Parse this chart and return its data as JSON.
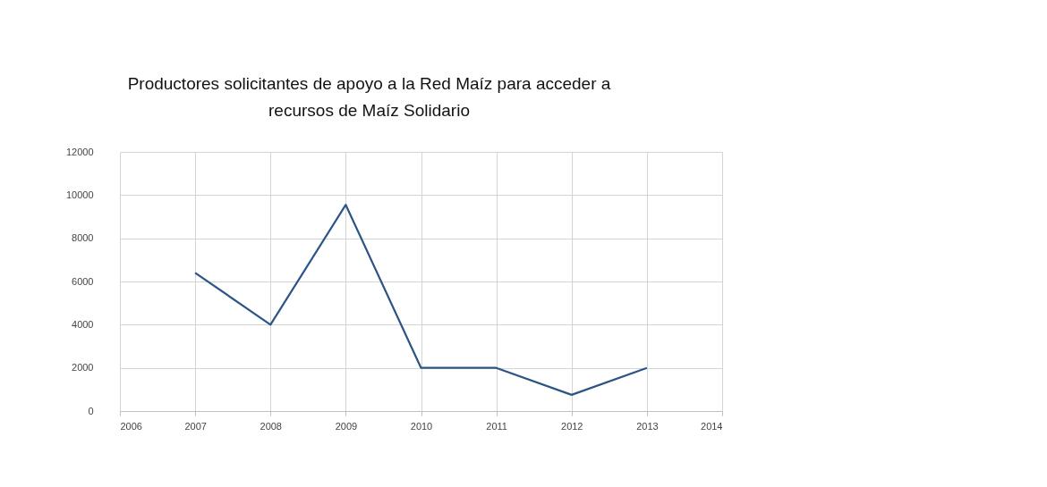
{
  "chart_data": {
    "type": "line",
    "title": "Productores solicitantes de apoyo a la Red Maíz para acceder a\nrecursos de Maíz Solidario",
    "x": [
      2007,
      2008,
      2009,
      2010,
      2011,
      2012,
      2013
    ],
    "series": [
      {
        "color": "#2b5585",
        "values": [
          6400,
          4000,
          9550,
          2000,
          2000,
          750,
          2000
        ]
      }
    ],
    "xlim": [
      2006,
      2014
    ],
    "xticks": [
      2006,
      2007,
      2008,
      2009,
      2010,
      2011,
      2012,
      2013,
      2014
    ],
    "ylim": [
      0,
      12000
    ],
    "yticks": [
      0,
      2000,
      4000,
      6000,
      8000,
      10000,
      12000
    ],
    "grid": true,
    "legend": false,
    "marker": "none",
    "line_style": "solid"
  }
}
